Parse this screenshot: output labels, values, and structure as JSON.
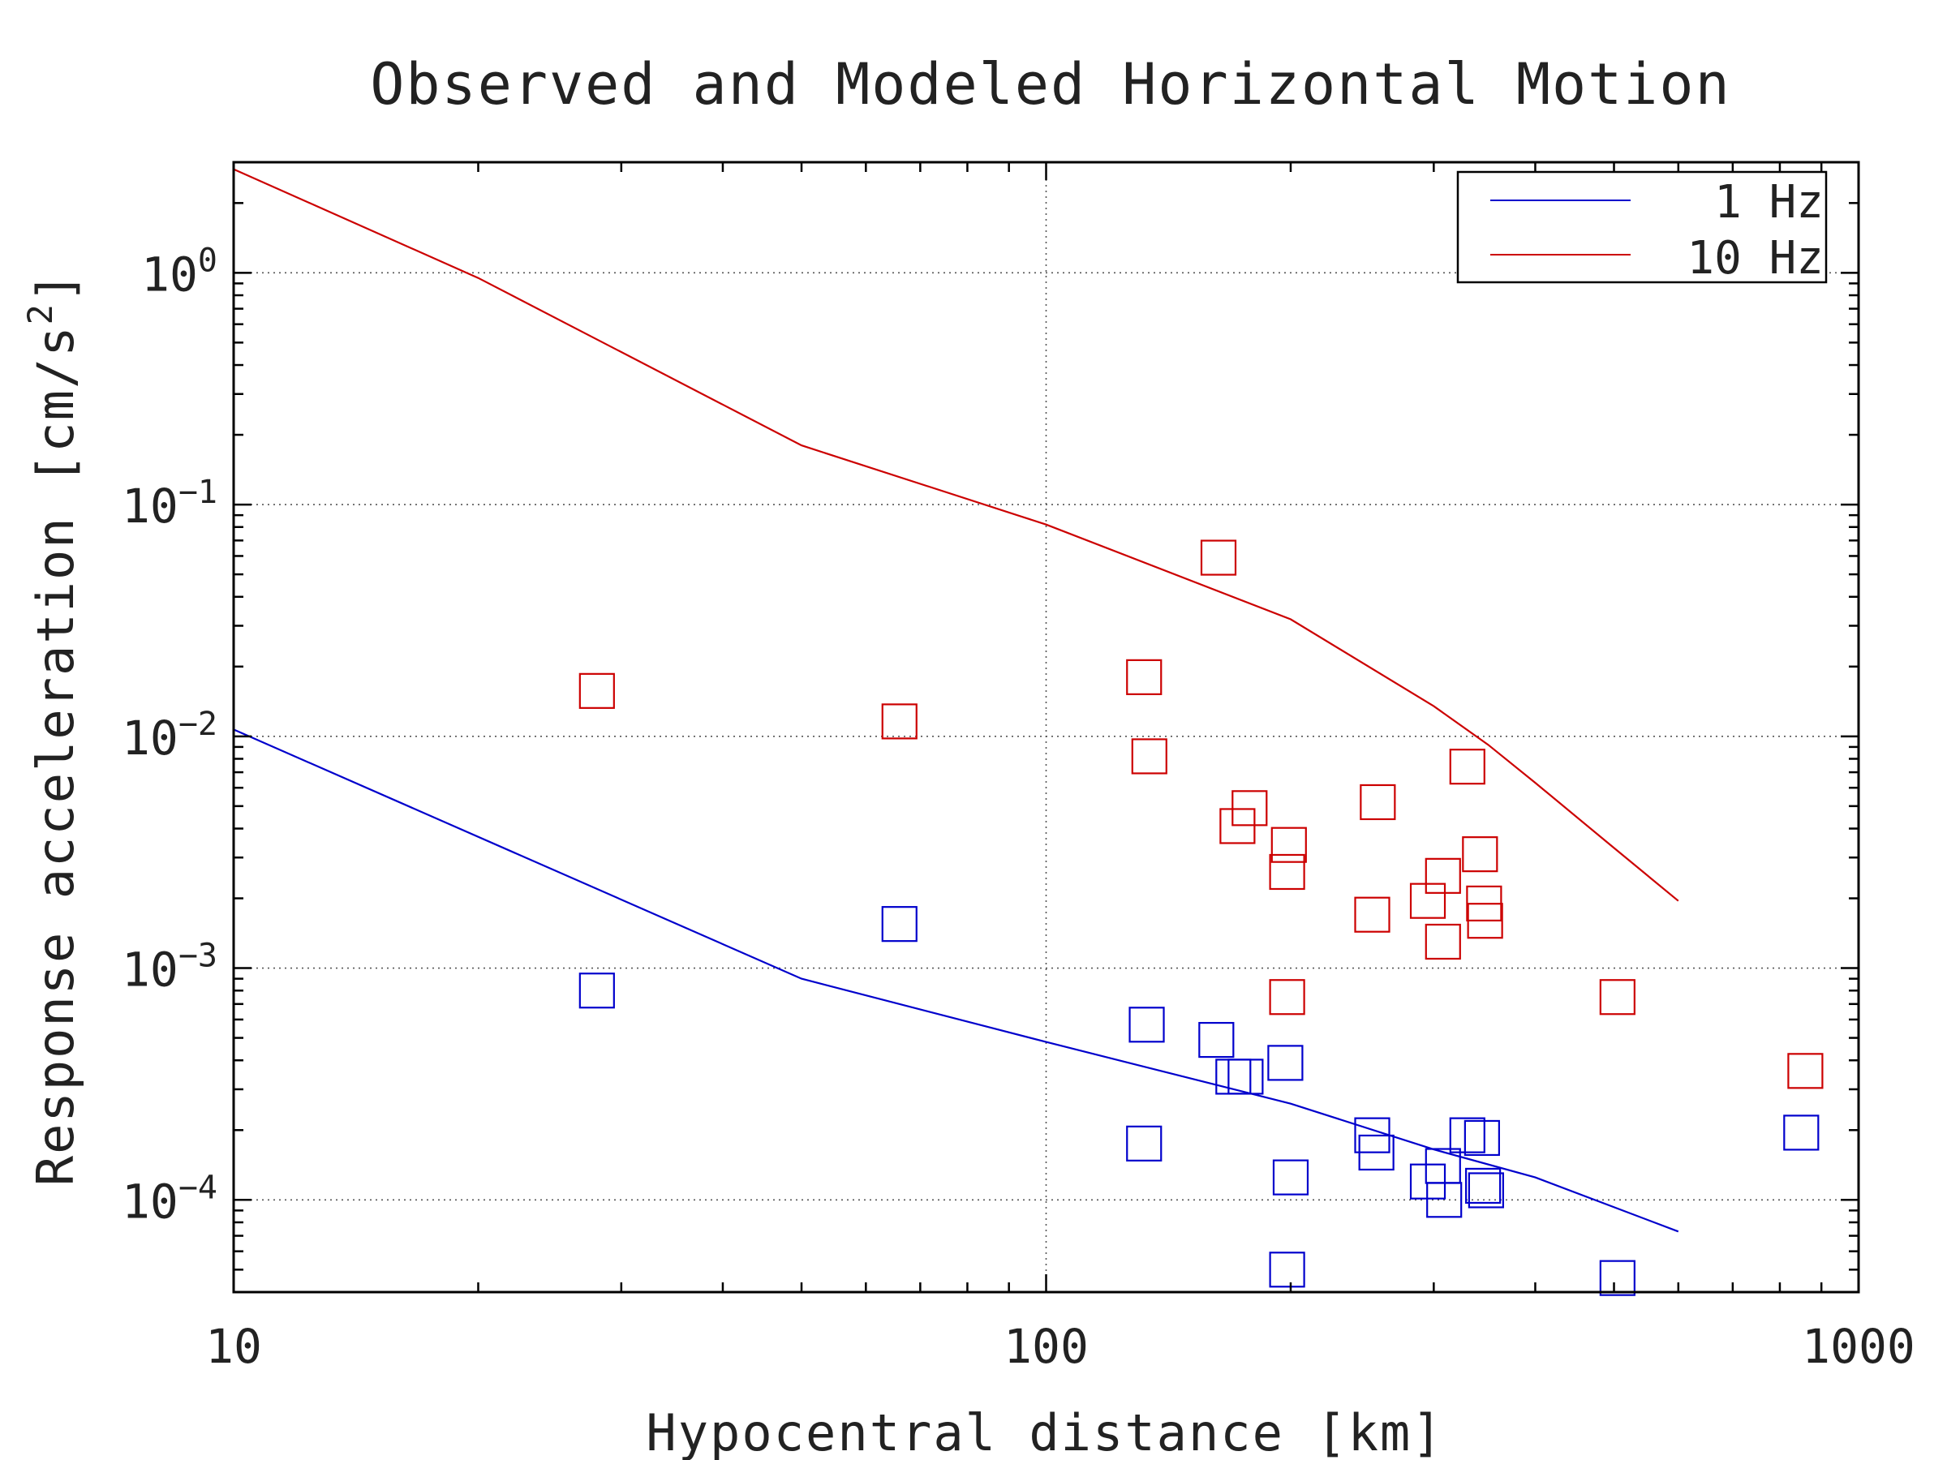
{
  "chart_data": {
    "type": "scatter",
    "title": "Observed and Modeled Horizontal Motion",
    "xlabel": "Hypocentral distance [km]",
    "ylabel_main": "Response acceleration [cm/s",
    "ylabel_sup": "2",
    "ylabel_close": "]",
    "x_scale": "log",
    "y_scale": "log",
    "xlim": [
      10,
      1000
    ],
    "ylim": [
      4e-05,
      3
    ],
    "x_ticks": [
      {
        "value": 10,
        "label": "10"
      },
      {
        "value": 100,
        "label": "100"
      },
      {
        "value": 1000,
        "label": "1000"
      }
    ],
    "y_ticks": [
      {
        "value": 1,
        "base": "10",
        "exp": "0"
      },
      {
        "value": 0.1,
        "base": "10",
        "exp": "−1"
      },
      {
        "value": 0.01,
        "base": "10",
        "exp": "−2"
      },
      {
        "value": 0.001,
        "base": "10",
        "exp": "−3"
      },
      {
        "value": 0.0001,
        "base": "10",
        "exp": "−4"
      }
    ],
    "grid": true,
    "legend_position": "top-right",
    "series": [
      {
        "name": "1 Hz",
        "color": "#0000cc",
        "model_line": [
          [
            10,
            0.0107
          ],
          [
            50,
            0.0009
          ],
          [
            100,
            0.00048
          ],
          [
            200,
            0.00026
          ],
          [
            300,
            0.000165
          ],
          [
            400,
            0.000125
          ],
          [
            600,
            7.3e-05
          ]
        ],
        "observed": [
          [
            28,
            0.0008
          ],
          [
            66,
            0.00155
          ],
          [
            133,
            0.00057
          ],
          [
            132,
            0.000175
          ],
          [
            162,
            0.00049
          ],
          [
            170,
            0.00034
          ],
          [
            176,
            0.00034
          ],
          [
            197,
            0.00039
          ],
          [
            198,
            5e-05
          ],
          [
            200,
            0.000125
          ],
          [
            252,
            0.00019
          ],
          [
            255,
            0.00016
          ],
          [
            295,
            0.00012
          ],
          [
            308,
            0.00014
          ],
          [
            309,
            0.0001
          ],
          [
            330,
            0.00019
          ],
          [
            344,
            0.000185
          ],
          [
            345,
            0.000115
          ],
          [
            348,
            0.00011
          ],
          [
            505,
            4.6e-05
          ],
          [
            850,
            0.000195
          ]
        ]
      },
      {
        "name": "10 Hz",
        "color": "#cc0000",
        "model_line": [
          [
            10,
            2.8
          ],
          [
            20,
            0.95
          ],
          [
            50,
            0.18
          ],
          [
            100,
            0.082
          ],
          [
            200,
            0.032
          ],
          [
            300,
            0.0135
          ],
          [
            350,
            0.0092
          ],
          [
            400,
            0.0063
          ],
          [
            500,
            0.0033
          ],
          [
            600,
            0.00195
          ]
        ],
        "observed": [
          [
            28,
            0.0157
          ],
          [
            66,
            0.0116
          ],
          [
            132,
            0.018
          ],
          [
            134,
            0.0082
          ],
          [
            163,
            0.059
          ],
          [
            172,
            0.0041
          ],
          [
            178,
            0.0049
          ],
          [
            198,
            0.0026
          ],
          [
            199,
            0.0034
          ],
          [
            198,
            0.00075
          ],
          [
            252,
            0.0017
          ],
          [
            256,
            0.0052
          ],
          [
            295,
            0.00195
          ],
          [
            308,
            0.0025
          ],
          [
            308,
            0.0013
          ],
          [
            330,
            0.0074
          ],
          [
            342,
            0.0031
          ],
          [
            346,
            0.0019
          ],
          [
            347,
            0.0016
          ],
          [
            505,
            0.00075
          ],
          [
            860,
            0.00036
          ]
        ]
      }
    ]
  }
}
